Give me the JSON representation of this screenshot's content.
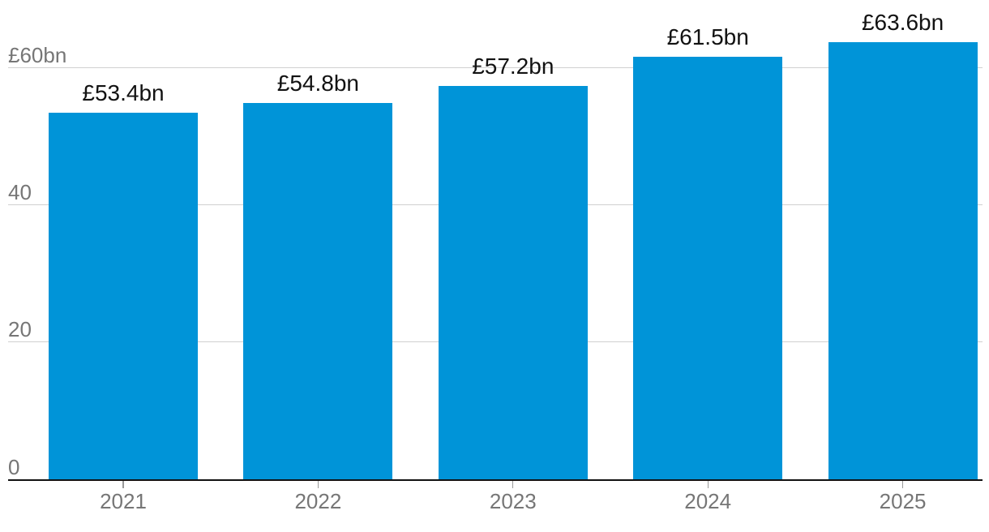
{
  "chart_data": {
    "type": "bar",
    "title": "",
    "xlabel": "",
    "ylabel": "",
    "categories": [
      "2021",
      "2022",
      "2023",
      "2024",
      "2025"
    ],
    "values": [
      53.4,
      54.8,
      57.2,
      61.5,
      63.6
    ],
    "value_labels": [
      "£53.4bn",
      "£54.8bn",
      "£57.2bn",
      "£61.5bn",
      "£63.6bn"
    ],
    "unit": "£bn",
    "ylim": [
      0,
      65
    ],
    "grid": true,
    "legend": "none",
    "y_axis": {
      "ticks": [
        {
          "value": 0,
          "label": "0"
        },
        {
          "value": 20,
          "label": "20"
        },
        {
          "value": 40,
          "label": "40"
        },
        {
          "value": 60,
          "label": "£60bn"
        }
      ]
    },
    "colors": {
      "bar": "#0094d8",
      "axis_text": "#767676",
      "data_label_text": "#121212",
      "grid_line": "#d0d0d0",
      "baseline": "#121212",
      "tick_mark": "#999999",
      "background": "#ffffff"
    }
  }
}
